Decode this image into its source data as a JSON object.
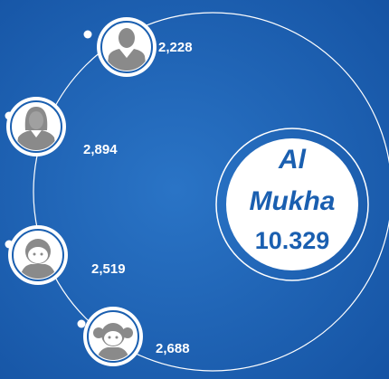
{
  "center": {
    "title_lines": [
      "Al",
      "Mukha"
    ],
    "total": "10.329"
  },
  "nodes": [
    {
      "label": "2,228"
    },
    {
      "label": "2,894"
    },
    {
      "label": "2,519"
    },
    {
      "label": "2,688"
    }
  ]
}
